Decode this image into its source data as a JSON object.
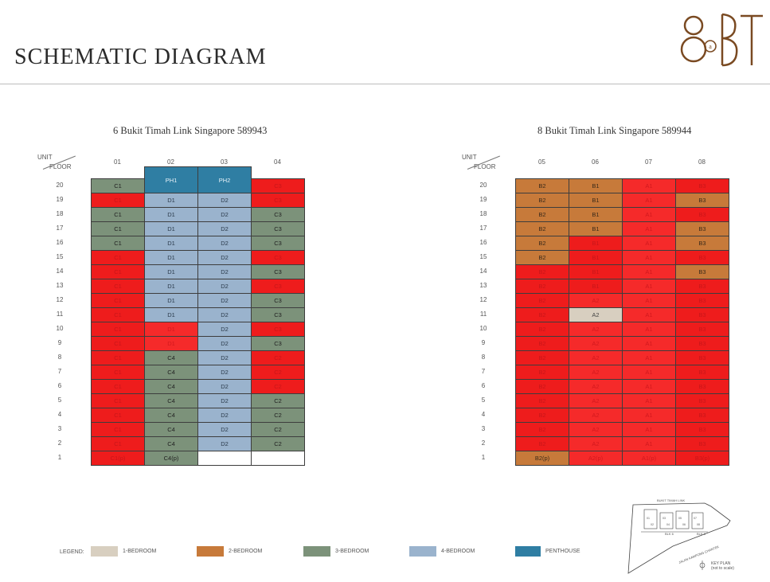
{
  "header": {
    "title": "SCHEMATIC DIAGRAM",
    "logo_text": "8@BT"
  },
  "blocks": [
    {
      "title": "6 Bukit Timah Link Singapore 589943",
      "unit_label": "UNIT",
      "floor_label": "FLOOR",
      "columns": [
        "01",
        "02",
        "03",
        "04"
      ]
    },
    {
      "title": "8 Bukit Timah Link Singapore 589944",
      "unit_label": "UNIT",
      "floor_label": "FLOOR",
      "columns": [
        "05",
        "06",
        "07",
        "08"
      ]
    }
  ],
  "floors": [
    "20",
    "19",
    "18",
    "17",
    "16",
    "15",
    "14",
    "13",
    "12",
    "11",
    "10",
    "9",
    "8",
    "7",
    "6",
    "5",
    "4",
    "3",
    "2",
    "1"
  ],
  "stacks_left": [
    [
      [
        "C1",
        "3bed"
      ],
      [
        "C1",
        "sold"
      ],
      [
        "C1",
        "3bed"
      ],
      [
        "C1",
        "3bed"
      ],
      [
        "C1",
        "3bed"
      ],
      [
        "C1",
        "sold"
      ],
      [
        "C1",
        "sold"
      ],
      [
        "C1",
        "sold"
      ],
      [
        "C1",
        "sold"
      ],
      [
        "C1",
        "sold"
      ],
      [
        "C1",
        "sold"
      ],
      [
        "C1",
        "sold"
      ],
      [
        "C1",
        "sold"
      ],
      [
        "C1",
        "sold"
      ],
      [
        "C1",
        "sold"
      ],
      [
        "C1",
        "sold"
      ],
      [
        "C1",
        "sold"
      ],
      [
        "C1",
        "sold"
      ],
      [
        "C1",
        "sold"
      ],
      [
        "C1(p)",
        "sold"
      ]
    ],
    [
      [
        "PH1",
        "ph"
      ],
      [
        "D1",
        "4bed"
      ],
      [
        "D1",
        "4bed"
      ],
      [
        "D1",
        "4bed"
      ],
      [
        "D1",
        "4bed"
      ],
      [
        "D1",
        "4bed"
      ],
      [
        "D1",
        "4bed"
      ],
      [
        "D1",
        "4bed"
      ],
      [
        "D1",
        "4bed"
      ],
      [
        "D1",
        "4bed"
      ],
      [
        "D1",
        "sold2"
      ],
      [
        "D1",
        "sold2"
      ],
      [
        "C4",
        "3bed"
      ],
      [
        "C4",
        "3bed"
      ],
      [
        "C4",
        "3bed"
      ],
      [
        "C4",
        "3bed"
      ],
      [
        "C4",
        "3bed"
      ],
      [
        "C4",
        "3bed"
      ],
      [
        "C4",
        "3bed"
      ],
      [
        "C4(p)",
        "3bed"
      ]
    ],
    [
      [
        "PH2",
        "ph"
      ],
      [
        "D2",
        "4bed"
      ],
      [
        "D2",
        "4bed"
      ],
      [
        "D2",
        "4bed"
      ],
      [
        "D2",
        "4bed"
      ],
      [
        "D2",
        "4bed"
      ],
      [
        "D2",
        "4bed"
      ],
      [
        "D2",
        "4bed"
      ],
      [
        "D2",
        "4bed"
      ],
      [
        "D2",
        "4bed"
      ],
      [
        "D2",
        "4bed"
      ],
      [
        "D2",
        "4bed"
      ],
      [
        "D2",
        "4bed"
      ],
      [
        "D2",
        "4bed"
      ],
      [
        "D2",
        "4bed"
      ],
      [
        "D2",
        "4bed"
      ],
      [
        "D2",
        "4bed"
      ],
      [
        "D2",
        "4bed"
      ],
      [
        "D2",
        "4bed"
      ],
      [
        "",
        "empty"
      ]
    ],
    [
      [
        "C3",
        "sold"
      ],
      [
        "C3",
        "sold"
      ],
      [
        "C3",
        "3bed"
      ],
      [
        "C3",
        "3bed"
      ],
      [
        "C3",
        "3bed"
      ],
      [
        "C3",
        "sold"
      ],
      [
        "C3",
        "3bed"
      ],
      [
        "C3",
        "sold"
      ],
      [
        "C3",
        "3bed"
      ],
      [
        "C3",
        "3bed"
      ],
      [
        "C3",
        "sold"
      ],
      [
        "C3",
        "3bed"
      ],
      [
        "C2",
        "sold"
      ],
      [
        "C2",
        "sold"
      ],
      [
        "C2",
        "sold"
      ],
      [
        "C2",
        "3bed"
      ],
      [
        "C2",
        "3bed"
      ],
      [
        "C2",
        "3bed"
      ],
      [
        "C2",
        "3bed"
      ],
      [
        "",
        "empty"
      ]
    ]
  ],
  "stacks_right": [
    [
      [
        "B2",
        "2bed"
      ],
      [
        "B2",
        "2bed"
      ],
      [
        "B2",
        "2bed"
      ],
      [
        "B2",
        "2bed"
      ],
      [
        "B2",
        "2bed"
      ],
      [
        "B2",
        "2bed"
      ],
      [
        "B2",
        "sold"
      ],
      [
        "B2",
        "sold"
      ],
      [
        "B2",
        "sold"
      ],
      [
        "B2",
        "sold"
      ],
      [
        "B2",
        "sold"
      ],
      [
        "B2",
        "sold"
      ],
      [
        "B2",
        "sold"
      ],
      [
        "B2",
        "sold"
      ],
      [
        "B2",
        "sold"
      ],
      [
        "B2",
        "sold"
      ],
      [
        "B2",
        "sold"
      ],
      [
        "B2",
        "sold"
      ],
      [
        "B2",
        "sold"
      ],
      [
        "B2(p)",
        "2bed"
      ]
    ],
    [
      [
        "B1",
        "2bed"
      ],
      [
        "B1",
        "2bed"
      ],
      [
        "B1",
        "2bed"
      ],
      [
        "B1",
        "2bed"
      ],
      [
        "B1",
        "sold"
      ],
      [
        "B1",
        "sold"
      ],
      [
        "B1",
        "sold"
      ],
      [
        "B1",
        "sold"
      ],
      [
        "A2",
        "sold2"
      ],
      [
        "A2",
        "1bed"
      ],
      [
        "A2",
        "sold2"
      ],
      [
        "A2",
        "sold2"
      ],
      [
        "A2",
        "sold2"
      ],
      [
        "A2",
        "sold2"
      ],
      [
        "A2",
        "sold2"
      ],
      [
        "A2",
        "sold2"
      ],
      [
        "A2",
        "sold2"
      ],
      [
        "A2",
        "sold2"
      ],
      [
        "A2",
        "sold2"
      ],
      [
        "A2(p)",
        "sold2"
      ]
    ],
    [
      [
        "A1",
        "sold2"
      ],
      [
        "A1",
        "sold2"
      ],
      [
        "A1",
        "sold2"
      ],
      [
        "A1",
        "sold2"
      ],
      [
        "A1",
        "sold2"
      ],
      [
        "A1",
        "sold2"
      ],
      [
        "A1",
        "sold2"
      ],
      [
        "A1",
        "sold2"
      ],
      [
        "A1",
        "sold2"
      ],
      [
        "A1",
        "sold2"
      ],
      [
        "A1",
        "sold2"
      ],
      [
        "A1",
        "sold2"
      ],
      [
        "A1",
        "sold2"
      ],
      [
        "A1",
        "sold2"
      ],
      [
        "A1",
        "sold2"
      ],
      [
        "A1",
        "sold2"
      ],
      [
        "A1",
        "sold2"
      ],
      [
        "A1",
        "sold2"
      ],
      [
        "A1",
        "sold2"
      ],
      [
        "A1(p)",
        "sold2"
      ]
    ],
    [
      [
        "B3",
        "sold"
      ],
      [
        "B3",
        "2bed"
      ],
      [
        "B3",
        "sold"
      ],
      [
        "B3",
        "2bed"
      ],
      [
        "B3",
        "2bed"
      ],
      [
        "B3",
        "sold"
      ],
      [
        "B3",
        "2bed"
      ],
      [
        "B3",
        "sold"
      ],
      [
        "B3",
        "sold"
      ],
      [
        "B3",
        "sold"
      ],
      [
        "B3",
        "sold"
      ],
      [
        "B3",
        "sold"
      ],
      [
        "B3",
        "sold"
      ],
      [
        "B3",
        "sold"
      ],
      [
        "B3",
        "sold"
      ],
      [
        "B3",
        "sold"
      ],
      [
        "B3",
        "sold"
      ],
      [
        "B3",
        "sold"
      ],
      [
        "B3",
        "sold"
      ],
      [
        "B3(p)",
        "sold"
      ]
    ]
  ],
  "legend": {
    "label": "LEGEND:",
    "items": [
      {
        "label": "1-BEDROOM",
        "color": "#d8cfc0"
      },
      {
        "label": "2-BEDROOM",
        "color": "#c77a3a"
      },
      {
        "label": "3-BEDROOM",
        "color": "#7c927a"
      },
      {
        "label": "4-BEDROOM",
        "color": "#9ab3cd"
      },
      {
        "label": "PENTHOUSE",
        "color": "#2f7ea3"
      }
    ]
  },
  "keyplan": {
    "road_top": "BUKIT TIMAH LINK",
    "road_side": "JALAN KAMPONG CHANTEK",
    "blk6": "BLK 6",
    "blk8": "BLK 8",
    "units": [
      "01",
      "02",
      "03",
      "04",
      "05",
      "06",
      "07",
      "08"
    ],
    "label": "KEY PLAN",
    "note": "(not to scale)"
  }
}
